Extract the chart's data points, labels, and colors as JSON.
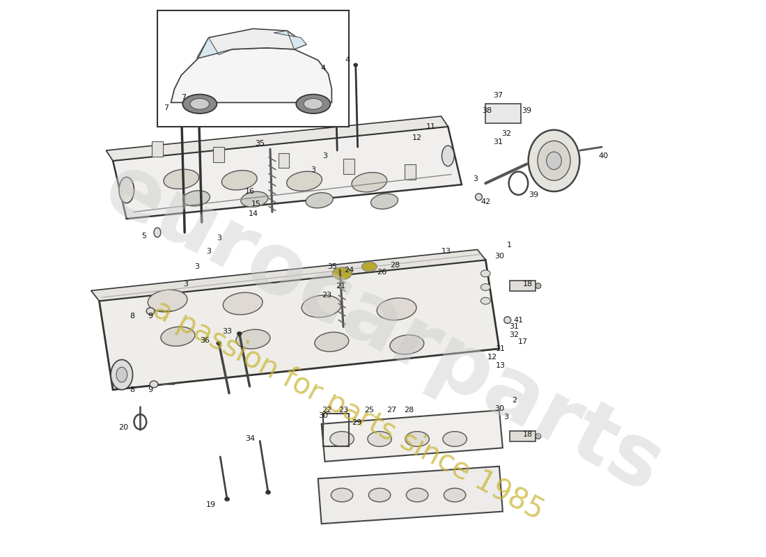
{
  "background_color": "#ffffff",
  "watermark_text_1": "eurocarparts",
  "watermark_text_2": "a passion for parts since 1985",
  "watermark_color": "#bbbbbb",
  "watermark_yellow": "#c8b430",
  "fig_width": 11.0,
  "fig_height": 8.0,
  "dpi": 100
}
